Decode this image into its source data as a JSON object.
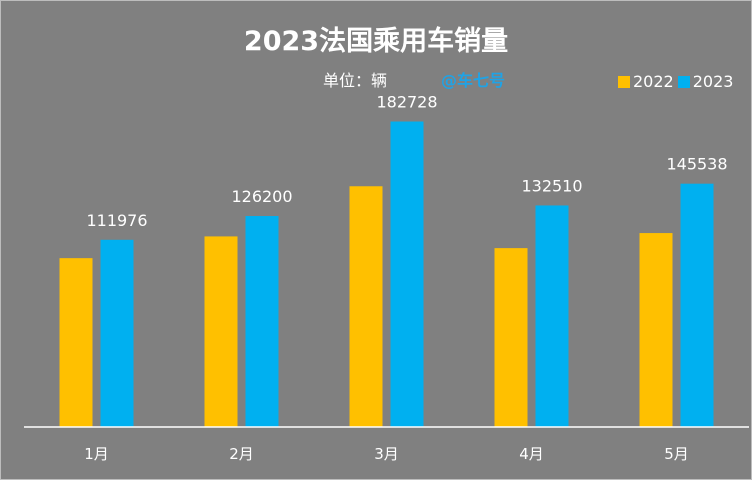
{
  "chart_data": {
    "type": "bar",
    "title": "2023法国乘用车销量",
    "unit_label": "单位：辆",
    "watermark": "@车七号",
    "categories": [
      "1月",
      "2月",
      "3月",
      "4月",
      "5月"
    ],
    "series": [
      {
        "name": "2022",
        "color": "#ffc000",
        "values": [
          101000,
          114000,
          144000,
          107000,
          116000
        ],
        "labels": [
          "",
          "",
          "",
          "",
          ""
        ]
      },
      {
        "name": "2023",
        "color": "#00b0f0",
        "values": [
          111976,
          126200,
          182728,
          132510,
          145538
        ],
        "labels": [
          "111976",
          "126200",
          "182728",
          "132510",
          "145538"
        ]
      }
    ],
    "ylim": [
      0,
      195000
    ],
    "legend_position": "top-right"
  }
}
